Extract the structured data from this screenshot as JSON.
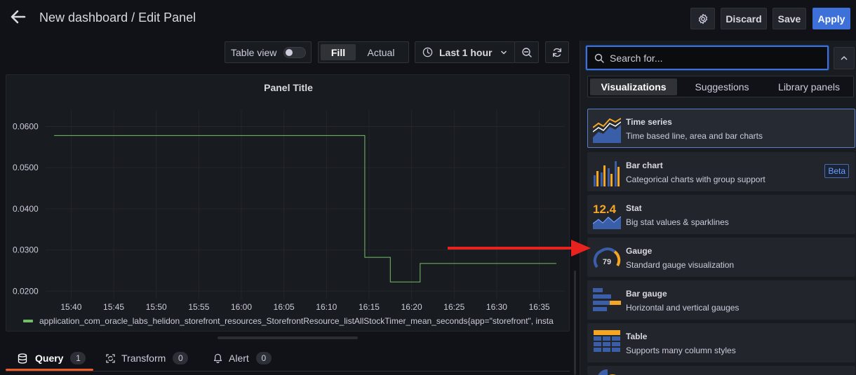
{
  "header": {
    "title": "New dashboard / Edit Panel",
    "discard_label": "Discard",
    "save_label": "Save",
    "apply_label": "Apply"
  },
  "toolbar": {
    "table_view_label": "Table view",
    "fill_label": "Fill",
    "actual_label": "Actual",
    "time_range_label": "Last 1 hour"
  },
  "panel": {
    "title": "Panel Title",
    "legend": "application_com_oracle_labs_helidon_storefront_resources_StorefrontResource_listAllStockTimer_mean_seconds{app=\"storefront\", insta"
  },
  "chart_data": {
    "type": "line",
    "title": "Panel Title",
    "x_labels": [
      "15:40",
      "15:45",
      "15:50",
      "15:55",
      "16:00",
      "16:05",
      "16:10",
      "16:15",
      "16:20",
      "16:25",
      "16:30",
      "16:35"
    ],
    "y_ticks": [
      "0.0600",
      "0.0500",
      "0.0400",
      "0.0300",
      "0.0200"
    ],
    "ylim": [
      0.018,
      0.064
    ],
    "series": [
      {
        "name": "application_com_oracle_labs_helidon_storefront_resources_StorefrontResource_listAllStockTimer_mean_seconds",
        "color": "#73bf69",
        "points": [
          [
            "15:38",
            0.0578
          ],
          [
            "16:14.5",
            0.0578
          ],
          [
            "16:14.5",
            0.0282
          ],
          [
            "16:17.5",
            0.0282
          ],
          [
            "16:17.5",
            0.0222
          ],
          [
            "16:21",
            0.0222
          ],
          [
            "16:21",
            0.0267
          ],
          [
            "16:37",
            0.0267
          ]
        ]
      }
    ]
  },
  "tabs": {
    "query_label": "Query",
    "query_count": "1",
    "transform_label": "Transform",
    "transform_count": "0",
    "alert_label": "Alert",
    "alert_count": "0"
  },
  "side": {
    "search_placeholder": "Search for...",
    "tab_visualizations": "Visualizations",
    "tab_suggestions": "Suggestions",
    "tab_library": "Library panels",
    "visualizations": [
      {
        "name": "Time series",
        "desc": "Time based line, area and bar charts",
        "icon": "time-series-icon"
      },
      {
        "name": "Bar chart",
        "desc": "Categorical charts with group support",
        "icon": "bar-chart-icon",
        "badge": "Beta"
      },
      {
        "name": "Stat",
        "desc": "Big stat values & sparklines",
        "icon": "stat-icon",
        "icon_text": "12.4"
      },
      {
        "name": "Gauge",
        "desc": "Standard gauge visualization",
        "icon": "gauge-icon",
        "icon_text": "79"
      },
      {
        "name": "Bar gauge",
        "desc": "Horizontal and vertical gauges",
        "icon": "bar-gauge-icon"
      },
      {
        "name": "Table",
        "desc": "Supports many column styles",
        "icon": "table-icon"
      }
    ]
  },
  "colors": {
    "accent": "#3d71d9",
    "series": "#73bf69",
    "query_underline": "#f05a28",
    "annotation_arrow": "#e8221e"
  }
}
